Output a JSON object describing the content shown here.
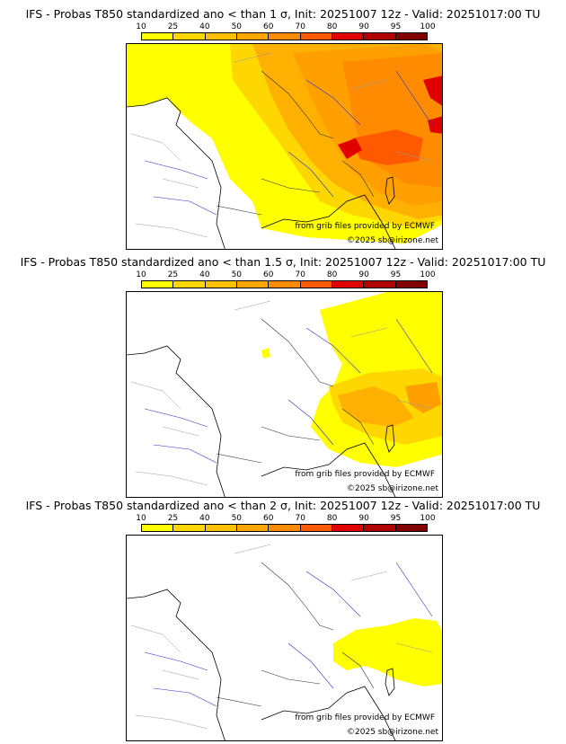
{
  "colorbar": {
    "labels": [
      "10",
      "25",
      "40",
      "50",
      "60",
      "70",
      "80",
      "90",
      "95",
      "100"
    ],
    "colors": [
      "#ffff00",
      "#ffd700",
      "#ffc000",
      "#ffa500",
      "#ff8c00",
      "#ff5a00",
      "#e00000",
      "#b00000",
      "#800000"
    ]
  },
  "credits": {
    "source": "from grib files provided by ECMWF",
    "copyright": "©2025 sb@irizone.net"
  },
  "panels": [
    {
      "title": "IFS - Probas T850  standardized ano < than 1 σ, Init: 20251007 12z - Valid: 20251017:00 TU"
    },
    {
      "title": "IFS - Probas T850  standardized ano < than 1.5 σ, Init: 20251007 12z - Valid: 20251017:00 TU"
    },
    {
      "title": "IFS - Probas T850  standardized ano < than 2 σ, Init: 20251007 12z - Valid: 20251017:00 TU"
    }
  ]
}
